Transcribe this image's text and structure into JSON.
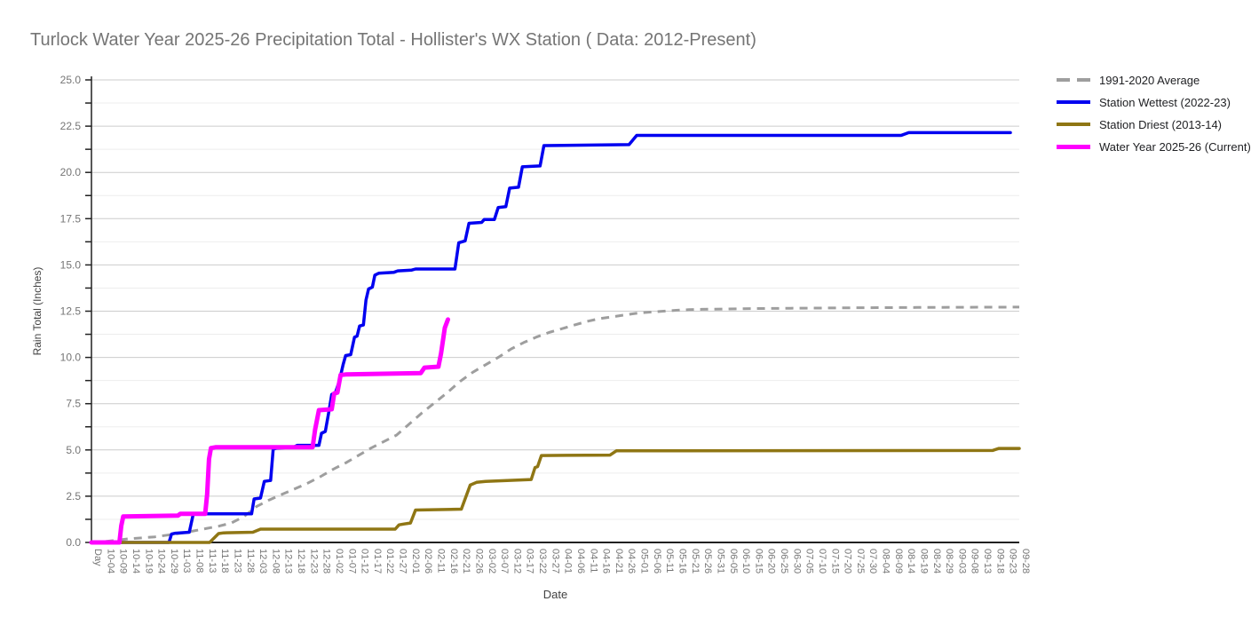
{
  "title": "Turlock Water Year 2025-26 Precipitation Total - Hollister's WX Station ( Data: 2012-Present)",
  "chart_data": {
    "type": "line",
    "title": "Turlock Water Year 2025-26 Precipitation Total - Hollister's WX Station ( Data: 2012-Present)",
    "x_axis": {
      "title": "Date",
      "tick_labels": [
        "Day",
        "10-04",
        "10-09",
        "10-14",
        "10-19",
        "10-24",
        "10-29",
        "11-03",
        "11-08",
        "11-13",
        "11-18",
        "11-23",
        "11-28",
        "12-03",
        "12-08",
        "12-13",
        "12-18",
        "12-23",
        "12-28",
        "01-02",
        "01-07",
        "01-12",
        "01-17",
        "01-22",
        "01-27",
        "02-01",
        "02-06",
        "02-11",
        "02-16",
        "02-21",
        "02-26",
        "03-02",
        "03-07",
        "03-12",
        "03-17",
        "03-22",
        "03-27",
        "04-01",
        "04-06",
        "04-11",
        "04-16",
        "04-21",
        "04-26",
        "05-01",
        "05-06",
        "05-11",
        "05-16",
        "05-21",
        "05-26",
        "05-31",
        "06-05",
        "06-10",
        "06-15",
        "06-20",
        "06-25",
        "06-30",
        "07-05",
        "07-10",
        "07-15",
        "07-20",
        "07-25",
        "07-30",
        "08-04",
        "08-09",
        "08-14",
        "08-19",
        "08-24",
        "08-29",
        "09-03",
        "09-08",
        "09-13",
        "09-18",
        "09-23",
        "09-28"
      ]
    },
    "y_axis": {
      "title": "Rain Total (Inches)",
      "min": 0,
      "max": 25,
      "major_step": 2.5,
      "minor_step": 1.25,
      "tick_labels": [
        "0.0",
        "2.5",
        "5.0",
        "7.5",
        "10.0",
        "12.5",
        "15.0",
        "17.5",
        "20.0",
        "22.5",
        "25.0"
      ]
    },
    "grid": true,
    "legend_position": "right",
    "series": [
      {
        "name": "1991-2020 Average",
        "color": "#9e9e9e",
        "dash": "9,7",
        "width": 3,
        "points": [
          [
            0,
            0
          ],
          [
            1,
            0.05
          ],
          [
            2,
            0.12
          ],
          [
            3,
            0.2
          ],
          [
            4,
            0.25
          ],
          [
            5,
            0.3
          ],
          [
            6,
            0.4
          ],
          [
            7,
            0.5
          ],
          [
            8,
            0.62
          ],
          [
            9,
            0.75
          ],
          [
            10,
            0.88
          ],
          [
            11,
            1.05
          ],
          [
            12,
            1.4
          ],
          [
            13,
            1.95
          ],
          [
            14,
            2.3
          ],
          [
            15,
            2.6
          ],
          [
            16,
            2.9
          ],
          [
            17,
            3.2
          ],
          [
            18,
            3.55
          ],
          [
            19,
            3.95
          ],
          [
            20,
            4.3
          ],
          [
            21,
            4.7
          ],
          [
            22,
            5.1
          ],
          [
            23,
            5.45
          ],
          [
            24,
            5.8
          ],
          [
            25,
            6.4
          ],
          [
            26,
            7.0
          ],
          [
            27,
            7.55
          ],
          [
            28,
            8.1
          ],
          [
            29,
            8.7
          ],
          [
            30,
            9.2
          ],
          [
            31,
            9.6
          ],
          [
            32,
            10.0
          ],
          [
            33,
            10.45
          ],
          [
            34,
            10.8
          ],
          [
            35,
            11.1
          ],
          [
            36,
            11.35
          ],
          [
            37,
            11.55
          ],
          [
            38,
            11.75
          ],
          [
            39,
            11.95
          ],
          [
            40,
            12.1
          ],
          [
            41,
            12.2
          ],
          [
            42,
            12.3
          ],
          [
            43,
            12.4
          ],
          [
            44,
            12.45
          ],
          [
            45,
            12.5
          ],
          [
            46,
            12.55
          ],
          [
            47,
            12.58
          ],
          [
            48,
            12.6
          ],
          [
            50,
            12.62
          ],
          [
            52,
            12.64
          ],
          [
            55,
            12.66
          ],
          [
            60,
            12.68
          ],
          [
            65,
            12.7
          ],
          [
            73,
            12.72
          ]
        ]
      },
      {
        "name": "Station Wettest (2022-23)",
        "color": "#0000f0",
        "dash": null,
        "width": 3.5,
        "points": [
          [
            0,
            0
          ],
          [
            6.1,
            0
          ],
          [
            6.3,
            0.45
          ],
          [
            6.6,
            0.5
          ],
          [
            7.7,
            0.55
          ],
          [
            8.0,
            1.5
          ],
          [
            8.3,
            1.55
          ],
          [
            12.6,
            1.55
          ],
          [
            12.8,
            2.35
          ],
          [
            13.3,
            2.4
          ],
          [
            13.6,
            3.3
          ],
          [
            14.1,
            3.35
          ],
          [
            14.3,
            5.05
          ],
          [
            14.6,
            5.1
          ],
          [
            15.9,
            5.15
          ],
          [
            16.2,
            5.25
          ],
          [
            17.9,
            5.25
          ],
          [
            18.1,
            5.9
          ],
          [
            18.4,
            6.0
          ],
          [
            18.7,
            7.15
          ],
          [
            18.9,
            8.0
          ],
          [
            19.2,
            8.1
          ],
          [
            19.5,
            8.7
          ],
          [
            19.8,
            9.6
          ],
          [
            20.0,
            10.1
          ],
          [
            20.4,
            10.15
          ],
          [
            20.7,
            11.1
          ],
          [
            20.9,
            11.15
          ],
          [
            21.1,
            11.7
          ],
          [
            21.4,
            11.75
          ],
          [
            21.6,
            13.1
          ],
          [
            21.8,
            13.7
          ],
          [
            22.1,
            13.8
          ],
          [
            22.3,
            14.45
          ],
          [
            22.6,
            14.55
          ],
          [
            23.8,
            14.6
          ],
          [
            24.1,
            14.68
          ],
          [
            25.2,
            14.72
          ],
          [
            25.5,
            14.78
          ],
          [
            28.6,
            14.78
          ],
          [
            28.9,
            16.2
          ],
          [
            29.4,
            16.3
          ],
          [
            29.7,
            17.25
          ],
          [
            30.7,
            17.3
          ],
          [
            30.9,
            17.45
          ],
          [
            31.7,
            17.45
          ],
          [
            32.0,
            18.1
          ],
          [
            32.6,
            18.15
          ],
          [
            32.9,
            19.15
          ],
          [
            33.6,
            19.2
          ],
          [
            33.9,
            20.3
          ],
          [
            35.3,
            20.35
          ],
          [
            35.6,
            21.45
          ],
          [
            42.3,
            21.5
          ],
          [
            42.9,
            22.0
          ],
          [
            63.7,
            22.0
          ],
          [
            64.3,
            22.15
          ],
          [
            72.3,
            22.15
          ]
        ]
      },
      {
        "name": "Station Driest (2013-14)",
        "color": "#8f7614",
        "dash": null,
        "width": 3.5,
        "points": [
          [
            0,
            0
          ],
          [
            9.3,
            0
          ],
          [
            9.6,
            0.2
          ],
          [
            10.0,
            0.48
          ],
          [
            10.4,
            0.52
          ],
          [
            12.7,
            0.55
          ],
          [
            13.3,
            0.72
          ],
          [
            23.9,
            0.72
          ],
          [
            24.2,
            0.95
          ],
          [
            24.6,
            1.0
          ],
          [
            25.1,
            1.05
          ],
          [
            25.5,
            1.75
          ],
          [
            29.1,
            1.8
          ],
          [
            29.8,
            3.1
          ],
          [
            30.3,
            3.25
          ],
          [
            31,
            3.3
          ],
          [
            34.6,
            3.4
          ],
          [
            34.9,
            4.05
          ],
          [
            35.1,
            4.1
          ],
          [
            35.4,
            4.7
          ],
          [
            40.8,
            4.72
          ],
          [
            41.3,
            4.95
          ],
          [
            70.9,
            4.97
          ],
          [
            71.4,
            5.08
          ],
          [
            73,
            5.08
          ]
        ]
      },
      {
        "name": "Water Year 2025-26 (Current)",
        "color": "#ff00ff",
        "dash": null,
        "width": 5,
        "points": [
          [
            0,
            0
          ],
          [
            2.2,
            0
          ],
          [
            2.35,
            0.9
          ],
          [
            2.5,
            1.4
          ],
          [
            6.8,
            1.45
          ],
          [
            7.0,
            1.55
          ],
          [
            8.95,
            1.55
          ],
          [
            9.1,
            2.6
          ],
          [
            9.25,
            4.5
          ],
          [
            9.4,
            5.1
          ],
          [
            9.8,
            5.15
          ],
          [
            17.4,
            5.15
          ],
          [
            17.6,
            6.1
          ],
          [
            17.9,
            7.15
          ],
          [
            18.9,
            7.2
          ],
          [
            19.1,
            8.05
          ],
          [
            19.35,
            8.1
          ],
          [
            19.6,
            9.05
          ],
          [
            20,
            9.08
          ],
          [
            25.9,
            9.15
          ],
          [
            26.2,
            9.45
          ],
          [
            27.3,
            9.5
          ],
          [
            27.5,
            10.2
          ],
          [
            27.8,
            11.6
          ],
          [
            28.05,
            12.05
          ]
        ]
      }
    ]
  }
}
